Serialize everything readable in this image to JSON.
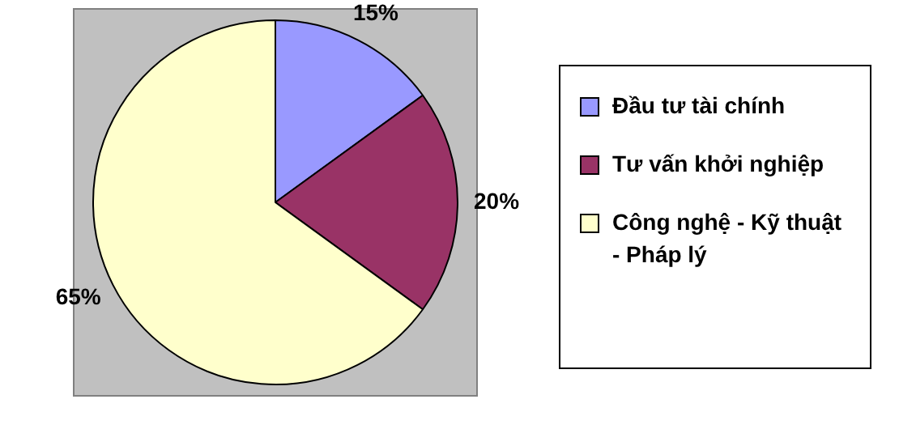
{
  "chart_data": {
    "type": "pie",
    "categories": [
      "Đầu tư tài chính",
      "Tư vấn khởi nghiệp",
      "Công nghệ - Kỹ thuật - Pháp lý"
    ],
    "values": [
      15,
      20,
      65
    ],
    "colors": [
      "#9999ff",
      "#993366",
      "#ffffcc"
    ],
    "value_labels": [
      "15%",
      "20%",
      "65%"
    ],
    "legend": "right"
  }
}
